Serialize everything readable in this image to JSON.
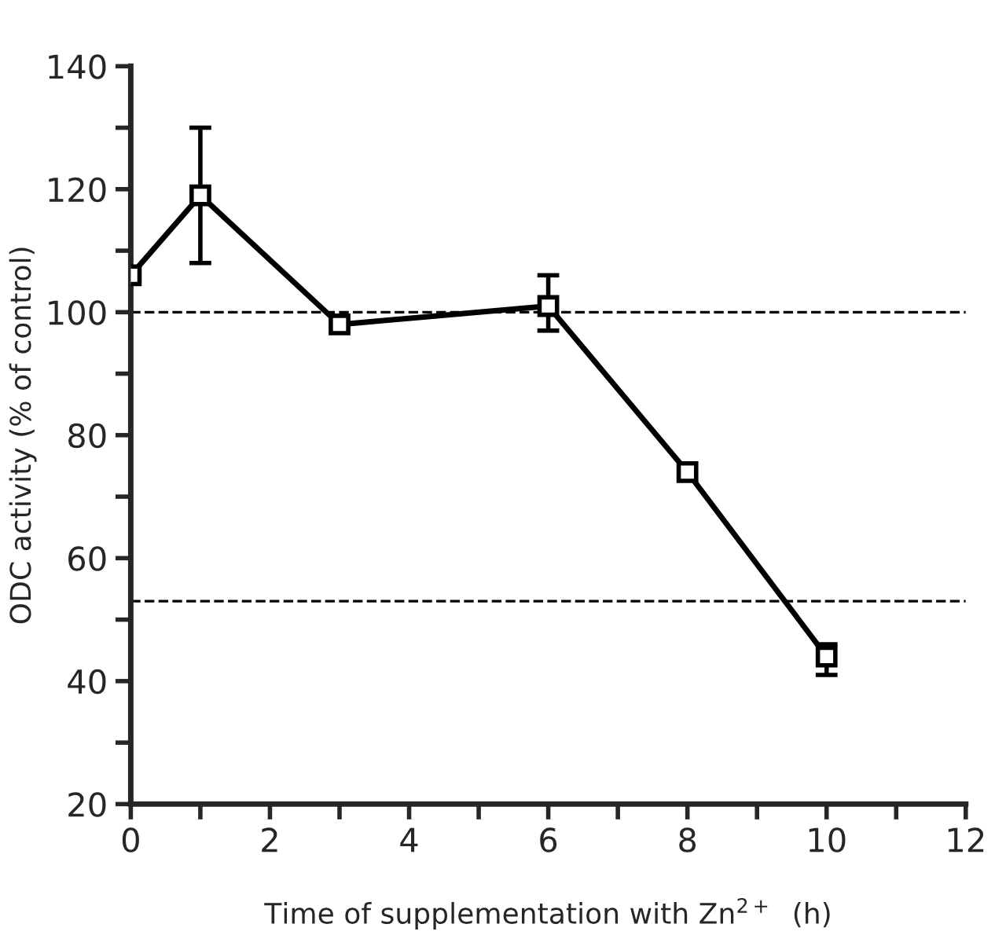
{
  "chart_data": {
    "type": "line",
    "xlabel": "Time of supplementation with Zn$^{2+}$  (h)",
    "ylabel": "ODC activity (% of control)",
    "x": [
      0,
      1,
      3,
      6,
      8,
      10
    ],
    "series": [
      {
        "color": "#000000",
        "values": [
          106,
          119,
          98,
          101,
          74,
          44
        ],
        "errors": [
          null,
          [
            108,
            130
          ],
          null,
          [
            97,
            106
          ],
          null,
          [
            41,
            46
          ]
        ]
      }
    ],
    "xlim": [
      0,
      12
    ],
    "ylim": [
      20,
      140
    ],
    "xticks": [
      0,
      {
        "value": 1,
        "label": null
      },
      2,
      {
        "value": 3,
        "label": null
      },
      4,
      {
        "value": 5,
        "label": null
      },
      6,
      {
        "value": 7,
        "label": null
      },
      8,
      {
        "value": 9,
        "label": null
      },
      10,
      {
        "value": 11,
        "label": null
      },
      12
    ],
    "yticks": [
      20,
      {
        "value": 30,
        "label": null
      },
      40,
      {
        "value": 50,
        "label": null
      },
      60,
      {
        "value": 70,
        "label": null
      },
      80,
      {
        "value": 90,
        "label": null
      },
      100,
      {
        "value": 110,
        "label": null
      },
      120,
      {
        "value": 130,
        "label": null
      },
      140
    ],
    "ref_lines": [
      {
        "axis": "y",
        "value": 100,
        "line_style": "dashed",
        "color": "#000000"
      },
      {
        "axis": "y",
        "value": 53,
        "line_style": "dashed",
        "color": "#000000"
      }
    ],
    "marker": "square",
    "line_style": "solid",
    "grid": false,
    "legend": false
  }
}
